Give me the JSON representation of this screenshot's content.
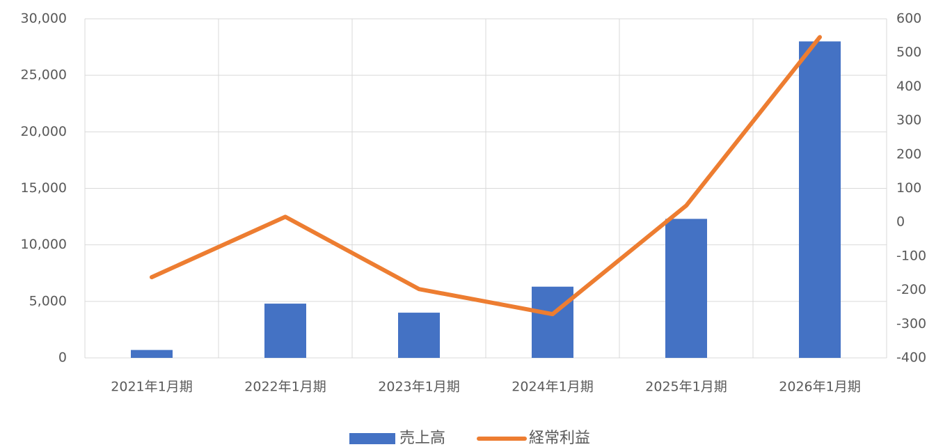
{
  "chart_data": {
    "type": "bar-line",
    "categories": [
      "2021年1月期",
      "2022年1月期",
      "2023年1月期",
      "2024年1月期",
      "2025年1月期",
      "2026年1月期"
    ],
    "series": [
      {
        "name": "売上高",
        "type": "bar",
        "color": "#4472c4",
        "values": [
          700,
          4800,
          4000,
          6300,
          12300,
          28000
        ]
      },
      {
        "name": "経常利益",
        "type": "line",
        "axis": "y2",
        "color": "#ed7d31",
        "values": [
          -162,
          16,
          -197,
          -271,
          49,
          546
        ]
      }
    ],
    "ylim": [
      0,
      30000
    ],
    "yticks": [
      0,
      {
        "value": 5000,
        "label": "5,000"
      },
      {
        "value": 10000,
        "label": "10,000"
      },
      {
        "value": 15000,
        "label": "15,000"
      },
      {
        "value": 20000,
        "label": "20,000"
      },
      {
        "value": 25000,
        "label": "25,000"
      },
      {
        "value": 30000,
        "label": "30,000"
      }
    ],
    "y2lim": [
      -400,
      600
    ],
    "y2ticks": [
      -400,
      -300,
      -200,
      -100,
      0,
      100,
      200,
      300,
      400,
      500,
      600
    ],
    "grid": true,
    "legend": "bottom"
  }
}
